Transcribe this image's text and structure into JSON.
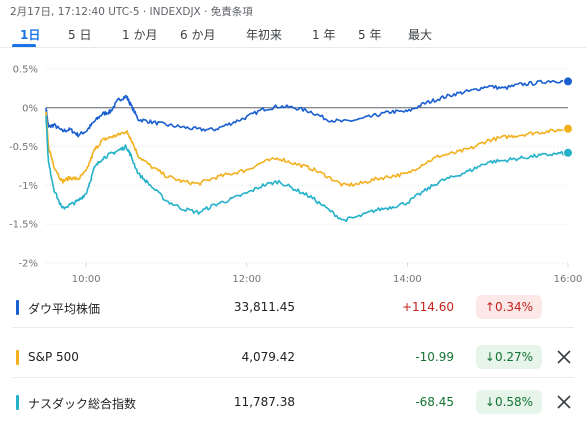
{
  "header": {
    "timestamp": "2月17日, 17:12:40 UTC-5 · INDEXDJX · 免責条項"
  },
  "tabs": [
    {
      "label": "1日",
      "active": true
    },
    {
      "label": "5 日",
      "active": false
    },
    {
      "label": "1 か月",
      "active": false
    },
    {
      "label": "6 か月",
      "active": false
    },
    {
      "label": "年初来",
      "active": false
    },
    {
      "label": "1 年",
      "active": false
    },
    {
      "label": "5 年",
      "active": false
    },
    {
      "label": "最大",
      "active": false
    }
  ],
  "chart_data": {
    "type": "line",
    "ylim": [
      -2,
      0.5
    ],
    "xlim": [
      "9:30",
      "16:00"
    ],
    "yticks": [
      "0.5%",
      "0%",
      "-0.5%",
      "-1%",
      "-1.5%",
      "-2%"
    ],
    "xticks": [
      "10:00",
      "12:00",
      "14:00",
      "16:00"
    ],
    "baseline": 0,
    "grid": "horizontal dotted",
    "series": [
      {
        "name": "ダウ平均株価",
        "color": "#1a5fd0",
        "points": [
          [
            9.5,
            0
          ],
          [
            9.53,
            -0.25
          ],
          [
            9.6,
            -0.22
          ],
          [
            9.7,
            -0.3
          ],
          [
            9.8,
            -0.28
          ],
          [
            9.9,
            -0.35
          ],
          [
            10,
            -0.3
          ],
          [
            10.1,
            -0.18
          ],
          [
            10.2,
            -0.08
          ],
          [
            10.3,
            -0.05
          ],
          [
            10.4,
            0.1
          ],
          [
            10.5,
            0.15
          ],
          [
            10.55,
            0.05
          ],
          [
            10.65,
            -0.15
          ],
          [
            10.8,
            -0.18
          ],
          [
            11,
            -0.22
          ],
          [
            11.2,
            -0.25
          ],
          [
            11.4,
            -0.28
          ],
          [
            11.6,
            -0.28
          ],
          [
            11.8,
            -0.2
          ],
          [
            12,
            -0.12
          ],
          [
            12.2,
            -0.02
          ],
          [
            12.4,
            0.02
          ],
          [
            12.6,
            0.0
          ],
          [
            12.8,
            -0.05
          ],
          [
            13,
            -0.15
          ],
          [
            13.2,
            -0.18
          ],
          [
            13.4,
            -0.15
          ],
          [
            13.6,
            -0.1
          ],
          [
            13.8,
            -0.05
          ],
          [
            14,
            -0.05
          ],
          [
            14.2,
            0.05
          ],
          [
            14.4,
            0.12
          ],
          [
            14.6,
            0.18
          ],
          [
            14.8,
            0.22
          ],
          [
            15,
            0.28
          ],
          [
            15.2,
            0.25
          ],
          [
            15.4,
            0.3
          ],
          [
            15.6,
            0.32
          ],
          [
            15.8,
            0.35
          ],
          [
            16,
            0.34
          ]
        ]
      },
      {
        "name": "S&P 500",
        "color": "#f2b01e",
        "points": [
          [
            9.5,
            -0.05
          ],
          [
            9.53,
            -0.5
          ],
          [
            9.6,
            -0.75
          ],
          [
            9.7,
            -0.95
          ],
          [
            9.8,
            -0.9
          ],
          [
            9.9,
            -0.92
          ],
          [
            10,
            -0.82
          ],
          [
            10.1,
            -0.55
          ],
          [
            10.2,
            -0.42
          ],
          [
            10.3,
            -0.38
          ],
          [
            10.4,
            -0.35
          ],
          [
            10.5,
            -0.3
          ],
          [
            10.55,
            -0.38
          ],
          [
            10.65,
            -0.62
          ],
          [
            10.8,
            -0.75
          ],
          [
            11,
            -0.88
          ],
          [
            11.2,
            -0.95
          ],
          [
            11.4,
            -0.98
          ],
          [
            11.6,
            -0.9
          ],
          [
            11.8,
            -0.85
          ],
          [
            12,
            -0.8
          ],
          [
            12.2,
            -0.7
          ],
          [
            12.4,
            -0.65
          ],
          [
            12.6,
            -0.72
          ],
          [
            12.8,
            -0.78
          ],
          [
            13,
            -0.88
          ],
          [
            13.2,
            -1.0
          ],
          [
            13.4,
            -0.98
          ],
          [
            13.6,
            -0.92
          ],
          [
            13.8,
            -0.88
          ],
          [
            14,
            -0.85
          ],
          [
            14.2,
            -0.72
          ],
          [
            14.4,
            -0.62
          ],
          [
            14.6,
            -0.58
          ],
          [
            14.8,
            -0.52
          ],
          [
            15,
            -0.42
          ],
          [
            15.2,
            -0.38
          ],
          [
            15.4,
            -0.35
          ],
          [
            15.6,
            -0.32
          ],
          [
            15.8,
            -0.3
          ],
          [
            16,
            -0.27
          ]
        ]
      },
      {
        "name": "ナスダック総合指数",
        "color": "#24b1c9",
        "points": [
          [
            9.5,
            -0.1
          ],
          [
            9.53,
            -0.7
          ],
          [
            9.6,
            -1.05
          ],
          [
            9.7,
            -1.3
          ],
          [
            9.8,
            -1.25
          ],
          [
            9.9,
            -1.2
          ],
          [
            10,
            -1.1
          ],
          [
            10.1,
            -0.78
          ],
          [
            10.2,
            -0.65
          ],
          [
            10.3,
            -0.6
          ],
          [
            10.4,
            -0.55
          ],
          [
            10.5,
            -0.5
          ],
          [
            10.55,
            -0.6
          ],
          [
            10.65,
            -0.85
          ],
          [
            10.8,
            -1.0
          ],
          [
            11,
            -1.2
          ],
          [
            11.2,
            -1.3
          ],
          [
            11.4,
            -1.35
          ],
          [
            11.6,
            -1.25
          ],
          [
            11.8,
            -1.18
          ],
          [
            12,
            -1.1
          ],
          [
            12.2,
            -1.0
          ],
          [
            12.4,
            -0.95
          ],
          [
            12.6,
            -1.05
          ],
          [
            12.8,
            -1.15
          ],
          [
            13,
            -1.3
          ],
          [
            13.2,
            -1.45
          ],
          [
            13.4,
            -1.4
          ],
          [
            13.6,
            -1.32
          ],
          [
            13.8,
            -1.28
          ],
          [
            14,
            -1.22
          ],
          [
            14.2,
            -1.08
          ],
          [
            14.4,
            -0.95
          ],
          [
            14.6,
            -0.88
          ],
          [
            14.8,
            -0.8
          ],
          [
            15,
            -0.7
          ],
          [
            15.2,
            -0.68
          ],
          [
            15.4,
            -0.65
          ],
          [
            15.6,
            -0.62
          ],
          [
            15.8,
            -0.6
          ],
          [
            16,
            -0.58
          ]
        ]
      }
    ]
  },
  "indices": [
    {
      "name": "ダウ平均株価",
      "price": "33,811.45",
      "change": "+114.60",
      "percent": "↑0.34%",
      "direction": "up",
      "color": "#1a5fd0",
      "removable": false
    },
    {
      "name": "S&P 500",
      "price": "4,079.42",
      "change": "-10.99",
      "percent": "↓0.27%",
      "direction": "down",
      "color": "#f2b01e",
      "removable": true
    },
    {
      "name": "ナスダック総合指数",
      "price": "11,787.38",
      "change": "-68.45",
      "percent": "↓0.58%",
      "direction": "down",
      "color": "#24b1c9",
      "removable": true
    }
  ],
  "icons": {
    "remove": "close-icon"
  }
}
